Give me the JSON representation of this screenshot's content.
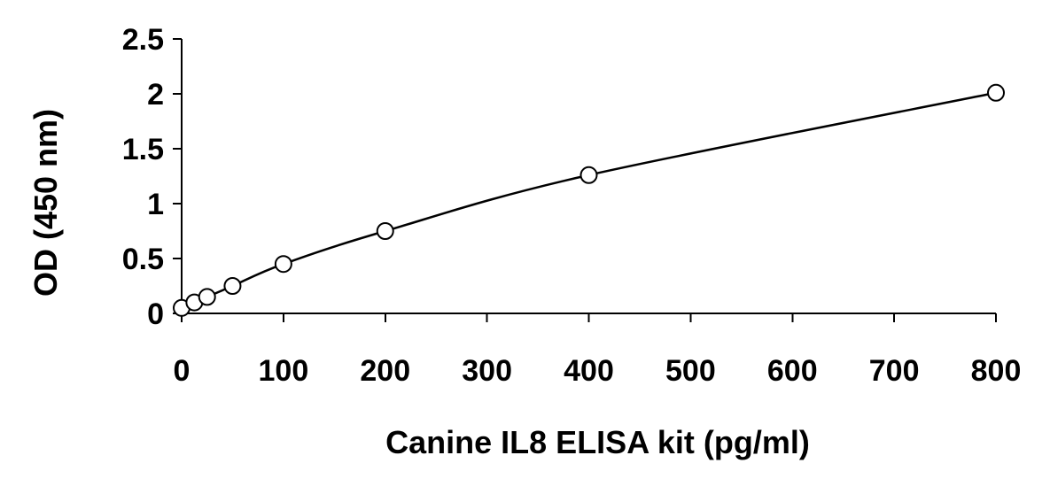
{
  "chart_data": {
    "type": "scatter",
    "xlabel": "Canine IL8 ELISA kit (pg/ml)",
    "ylabel": "OD (450 nm)",
    "xlim": [
      0,
      800
    ],
    "ylim": [
      0,
      2.5
    ],
    "x_ticks": [
      "0",
      "100",
      "200",
      "300",
      "400",
      "500",
      "600",
      "700",
      "800"
    ],
    "y_ticks": [
      "0",
      "0.5",
      "1",
      "1.5",
      "2",
      "2.5"
    ],
    "grid": false,
    "legend": "none",
    "series": [
      {
        "points": [
          {
            "x": 0,
            "y": 0.05
          },
          {
            "x": 12.5,
            "y": 0.1
          },
          {
            "x": 25,
            "y": 0.15
          },
          {
            "x": 50,
            "y": 0.25
          },
          {
            "x": 100,
            "y": 0.45
          },
          {
            "x": 200,
            "y": 0.75
          },
          {
            "x": 400,
            "y": 1.26
          },
          {
            "x": 800,
            "y": 2.01
          }
        ],
        "fit": "smooth curve through points",
        "marker": "open circle",
        "color": "#000000"
      }
    ]
  }
}
